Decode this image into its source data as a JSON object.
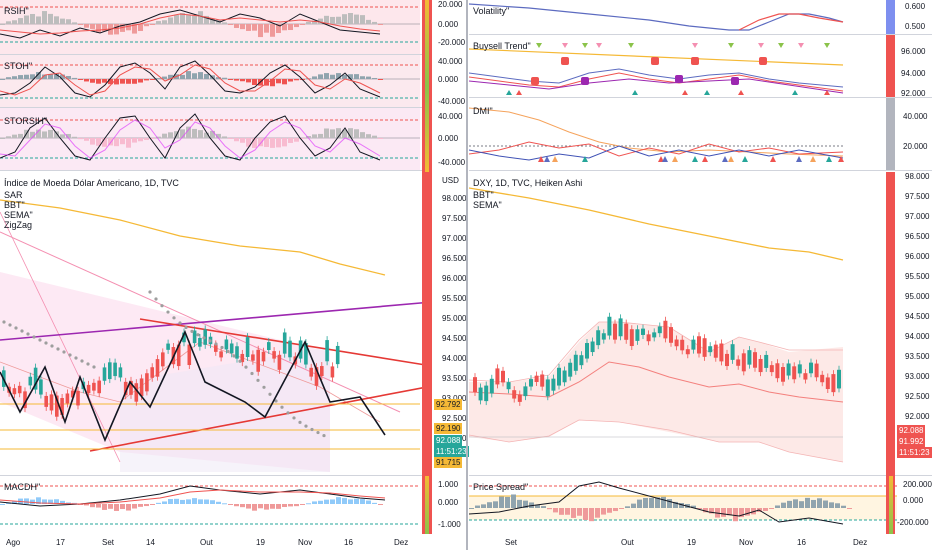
{
  "left": {
    "rsi": {
      "title": "RSIH\"",
      "ticks": [
        "20.000",
        "0.000",
        "-20.000"
      ]
    },
    "stoh": {
      "title": "STOH\"",
      "ticks": [
        "40.000",
        "0.000",
        "-40.000"
      ]
    },
    "storsi": {
      "title": "STORSIH\"",
      "ticks": [
        "40.000",
        "0.000",
        "-40.000"
      ]
    },
    "main": {
      "title": "Índice de Moeda Dólar Americano, 1D, TVC",
      "indicators": [
        "SAR",
        "BBT\"",
        "SEMA\"",
        "ZigZag"
      ],
      "currency": "USD",
      "ticks": [
        "98.000",
        "97.500",
        "97.000",
        "96.500",
        "96.000",
        "95.500",
        "95.000",
        "94.500",
        "94.000",
        "93.500",
        "93.000",
        "92.500",
        "92.000"
      ],
      "tags": {
        "t1": "92.792",
        "t2": "92.190",
        "t3": "92.088",
        "t4": "11:51:23",
        "t5": "91.715"
      }
    },
    "macd": {
      "title": "MACDH\"",
      "ticks": [
        "1.000",
        "0.000",
        "-1.000"
      ]
    },
    "dates": [
      "Ago",
      "17",
      "Set",
      "14",
      "Out",
      "19",
      "Nov",
      "16",
      "Dez"
    ]
  },
  "right": {
    "volatility": {
      "title": "Volatility\"",
      "ticks": [
        "0.600",
        "0.500"
      ]
    },
    "buysell": {
      "title": "Buysell Trend\"",
      "ticks": [
        "96.000",
        "94.000",
        "92.000"
      ]
    },
    "dmi": {
      "title": "DMI\"",
      "ticks": [
        "40.000",
        "20.000"
      ]
    },
    "main": {
      "title": "DXY, 1D, TVC, Heiken Ashi",
      "indicators": [
        "BBT\"",
        "SEMA\""
      ],
      "ticks": [
        "98.000",
        "97.500",
        "97.000",
        "96.500",
        "96.000",
        "95.500",
        "95.000",
        "94.500",
        "94.000",
        "93.500",
        "93.000",
        "92.500",
        "92.000"
      ],
      "tags": {
        "t1": "92.088",
        "t2": "91.992",
        "t3": "11:51:23"
      }
    },
    "spread": {
      "title": "Price Spread\"",
      "ticks": [
        "200.000",
        "0.000",
        "-200.000"
      ]
    },
    "dates": [
      "Set",
      "Out",
      "19",
      "Nov",
      "16",
      "Dez"
    ]
  },
  "colors": {
    "up": "#26a69a",
    "down": "#ef5350",
    "sema": "#f5b936",
    "zig": "#131722",
    "sar": "#9e9e9e"
  }
}
